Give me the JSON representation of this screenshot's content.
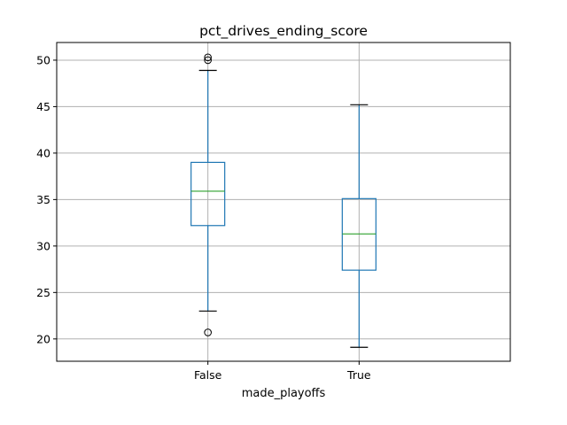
{
  "chart_data": {
    "type": "box",
    "title": "pct_drives_ending_score",
    "xlabel": "made_playoffs",
    "ylabel": "",
    "categories": [
      "False",
      "True"
    ],
    "ylim": [
      17.6,
      51.9
    ],
    "yticks": [
      20,
      25,
      30,
      35,
      40,
      45,
      50
    ],
    "grid": true,
    "boxes": [
      {
        "category": "False",
        "whisker_low": 23.0,
        "q1": 32.2,
        "median": 35.9,
        "q3": 39.0,
        "whisker_high": 48.9,
        "outliers": [
          20.7,
          50.0,
          50.3
        ]
      },
      {
        "category": "True",
        "whisker_low": 19.1,
        "q1": 27.4,
        "median": 31.3,
        "q3": 35.1,
        "whisker_high": 45.2,
        "outliers": []
      }
    ],
    "colors": {
      "box": "#1f77b4",
      "median": "#2ca02c",
      "whisker_cap": "#000000",
      "grid": "#b0b0b0",
      "axes": "#000000"
    }
  }
}
